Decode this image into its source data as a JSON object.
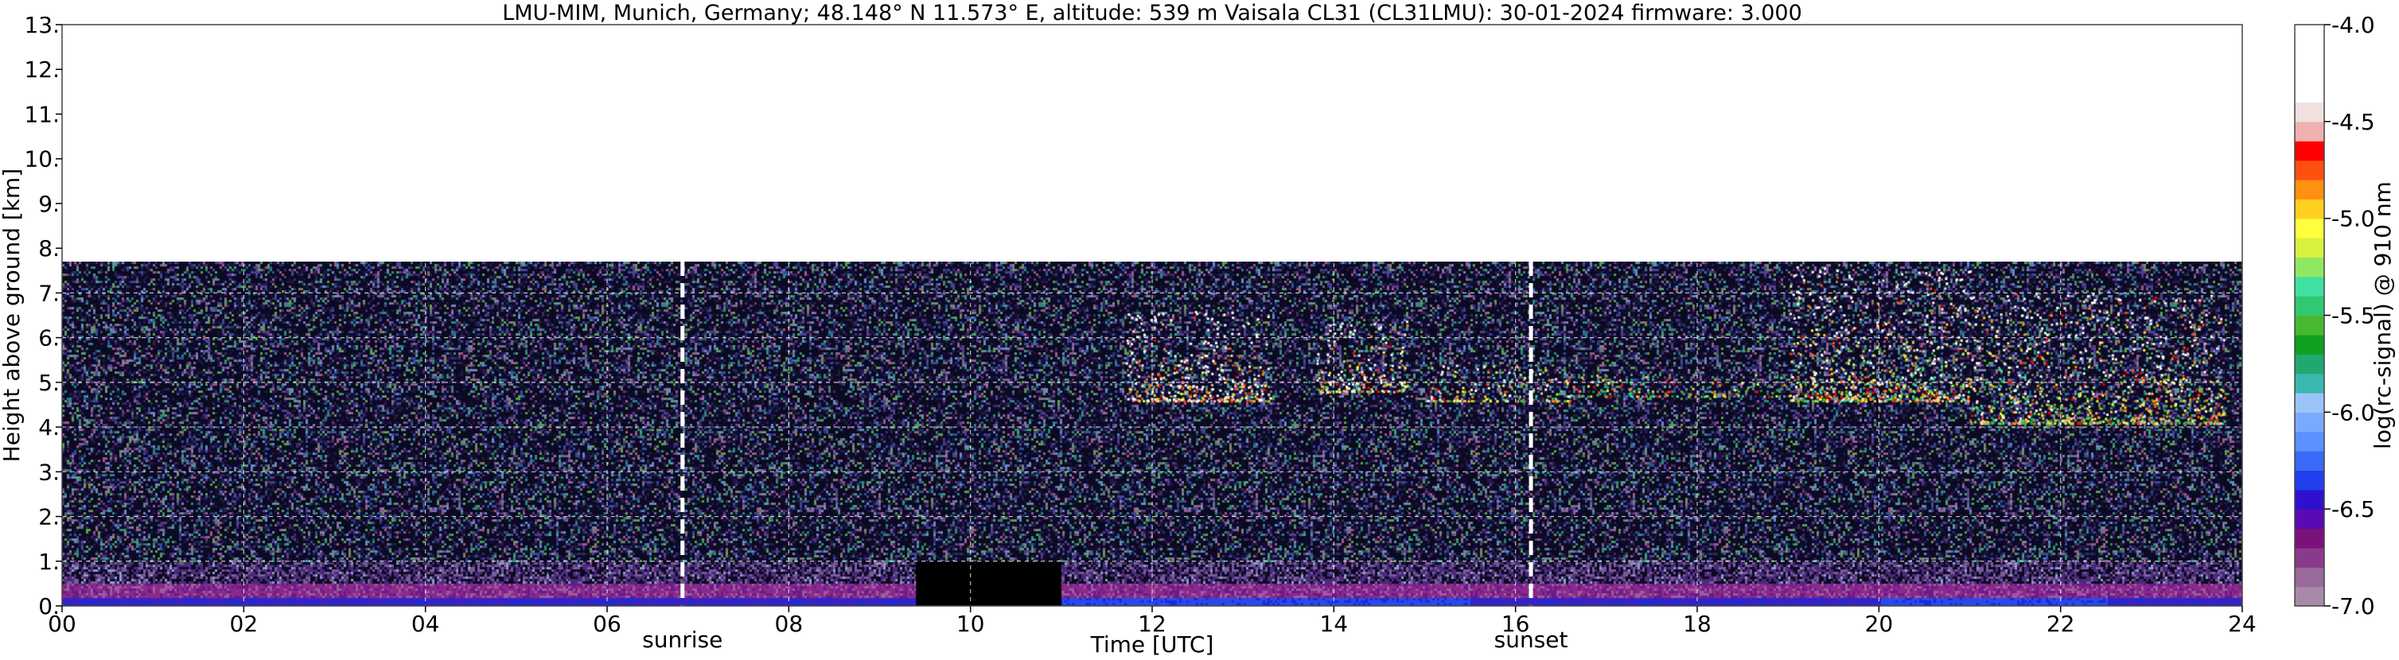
{
  "chart_data": {
    "type": "heatmap",
    "title": "LMU-MIM, Munich, Germany; 48.148° N 11.573° E, altitude: 539 m    Vaisala CL31 (CL31LMU): 30-01-2024    firmware: 3.000",
    "xlabel": "Time [UTC]",
    "ylabel": "Height above ground [km]",
    "xlim": [
      0,
      24
    ],
    "ylim": [
      0,
      13
    ],
    "x_ticks": [
      {
        "value": 0,
        "label": "00"
      },
      {
        "value": 2,
        "label": "02"
      },
      {
        "value": 4,
        "label": "04"
      },
      {
        "value": 6,
        "label": "06"
      },
      {
        "value": 8,
        "label": "08"
      },
      {
        "value": 10,
        "label": "10"
      },
      {
        "value": 12,
        "label": "12"
      },
      {
        "value": 14,
        "label": "14"
      },
      {
        "value": 16,
        "label": "16"
      },
      {
        "value": 18,
        "label": "18"
      },
      {
        "value": 20,
        "label": "20"
      },
      {
        "value": 22,
        "label": "22"
      },
      {
        "value": 24,
        "label": "24"
      }
    ],
    "y_ticks": [
      {
        "value": 0,
        "label": "0."
      },
      {
        "value": 1,
        "label": "1."
      },
      {
        "value": 2,
        "label": "2."
      },
      {
        "value": 3,
        "label": "3."
      },
      {
        "value": 4,
        "label": "4."
      },
      {
        "value": 5,
        "label": "5."
      },
      {
        "value": 6,
        "label": "6."
      },
      {
        "value": 7,
        "label": "7."
      },
      {
        "value": 8,
        "label": "8."
      },
      {
        "value": 9,
        "label": "9."
      },
      {
        "value": 10,
        "label": "10."
      },
      {
        "value": 11,
        "label": "11."
      },
      {
        "value": 12,
        "label": "12."
      },
      {
        "value": 13,
        "label": "13."
      }
    ],
    "grid": true,
    "data_top_km": 7.7,
    "events": [
      {
        "label": "sunrise",
        "time": 6.83
      },
      {
        "label": "sunset",
        "time": 16.17
      }
    ],
    "missing_data": {
      "start": 9.4,
      "end": 11.0,
      "top_km": 1.0
    },
    "cloud_layers": [
      {
        "start": 11.7,
        "end": 13.3,
        "base_km": 4.6,
        "top_km": 6.6,
        "level": -4.6
      },
      {
        "start": 13.8,
        "end": 14.8,
        "base_km": 4.8,
        "top_km": 6.4,
        "level": -4.8
      },
      {
        "start": 15.0,
        "end": 16.6,
        "base_km": 4.6,
        "top_km": 5.4,
        "level": -4.9
      },
      {
        "start": 16.6,
        "end": 19.0,
        "base_km": 4.7,
        "top_km": 5.2,
        "level": -5.3
      },
      {
        "start": 19.0,
        "end": 21.0,
        "base_km": 4.6,
        "top_km": 7.6,
        "level": -5.0
      },
      {
        "start": 21.0,
        "end": 23.8,
        "base_km": 4.1,
        "top_km": 7.0,
        "level": -5.1
      }
    ],
    "colorbar": {
      "label": "log(rc-signal) @ 910 nm",
      "min": -7.0,
      "max": -4.0,
      "ticks": [
        {
          "value": -4.0,
          "label": "-4.0"
        },
        {
          "value": -4.5,
          "label": "-4.5"
        },
        {
          "value": -5.0,
          "label": "-5.0"
        },
        {
          "value": -5.5,
          "label": "-5.5"
        },
        {
          "value": -6.0,
          "label": "-6.0"
        },
        {
          "value": -6.5,
          "label": "-6.5"
        },
        {
          "value": -7.0,
          "label": "-7.0"
        }
      ],
      "colors": [
        "#a88aa8",
        "#9a6a9a",
        "#8a3a8a",
        "#7a127a",
        "#5a0ab4",
        "#3010d0",
        "#2040f0",
        "#3a6af8",
        "#5a90ff",
        "#7aaaff",
        "#9ac4f8",
        "#3ab8b0",
        "#20a870",
        "#10a020",
        "#48b830",
        "#30c870",
        "#40e0a0",
        "#90e860",
        "#d8f040",
        "#ffff40",
        "#ffd020",
        "#ff9010",
        "#ff5010",
        "#ff0000",
        "#f0b0b0",
        "#f0e0e0",
        "#ffffff",
        "#ffffff",
        "#ffffff",
        "#ffffff"
      ]
    }
  }
}
